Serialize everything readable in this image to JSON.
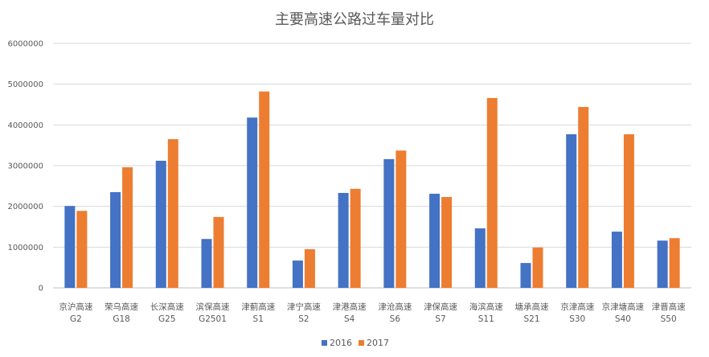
{
  "chart_data": {
    "type": "bar",
    "title": "主要高速公路过车量对比",
    "categories": [
      {
        "name": "京沪高速",
        "code": "G2"
      },
      {
        "name": "荣乌高速",
        "code": "G18"
      },
      {
        "name": "长深高速",
        "code": "G25"
      },
      {
        "name": "滨保高速",
        "code": "G2501"
      },
      {
        "name": "津蓟高速",
        "code": "S1"
      },
      {
        "name": "津宁高速",
        "code": "S2"
      },
      {
        "name": "津港高速",
        "code": "S4"
      },
      {
        "name": "津沧高速",
        "code": "S6"
      },
      {
        "name": "津保高速",
        "code": "S7"
      },
      {
        "name": "海滨高速",
        "code": "S11"
      },
      {
        "name": "塘承高速",
        "code": "S21"
      },
      {
        "name": "京津高速",
        "code": "S30"
      },
      {
        "name": "京津塘高速",
        "code": "S40"
      },
      {
        "name": "津晋高速",
        "code": "S50"
      }
    ],
    "series": [
      {
        "name": "2016",
        "color": "#4472C4",
        "values": [
          2010000,
          2350000,
          3120000,
          1200000,
          4180000,
          670000,
          2330000,
          3160000,
          2310000,
          1460000,
          610000,
          3770000,
          1380000,
          1160000
        ]
      },
      {
        "name": "2017",
        "color": "#ED7D31",
        "values": [
          1890000,
          2960000,
          3650000,
          1740000,
          4820000,
          950000,
          2430000,
          3370000,
          2230000,
          4660000,
          990000,
          4440000,
          3770000,
          1220000
        ]
      }
    ],
    "yticks": [
      "0",
      "1000000",
      "2000000",
      "3000000",
      "4000000",
      "5000000",
      "6000000"
    ],
    "ylim": [
      0,
      6000000
    ],
    "grid": true,
    "legend": "bottom"
  }
}
